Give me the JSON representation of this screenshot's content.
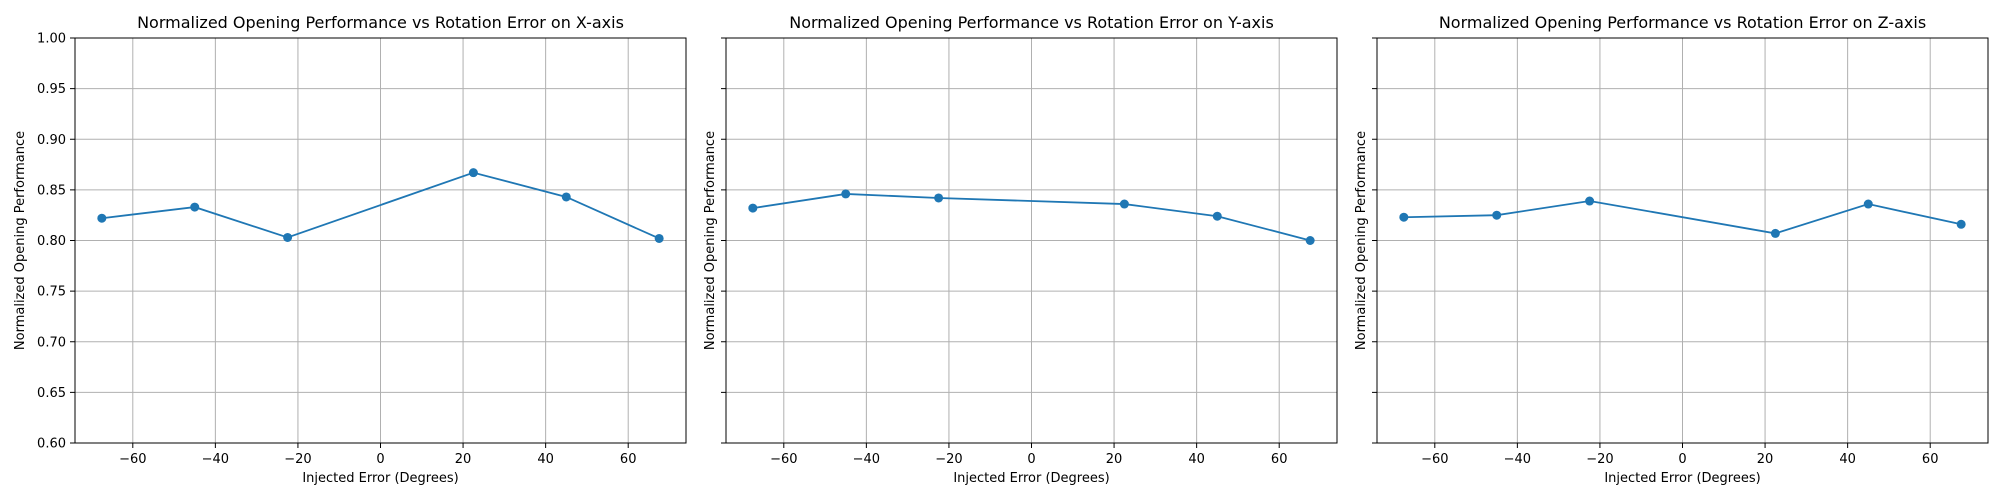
{
  "chart_data": [
    {
      "type": "line",
      "title": "Normalized Opening Performance vs Rotation Error on X-axis",
      "xlabel": "Injected Error (Degrees)",
      "ylabel": "Normalized Opening Performance",
      "xlim": [
        -74,
        74
      ],
      "ylim": [
        0.6,
        1.0
      ],
      "xticks": [
        -60,
        -40,
        -20,
        0,
        20,
        40,
        60
      ],
      "yticks": [
        0.6,
        0.65,
        0.7,
        0.75,
        0.8,
        0.85,
        0.9,
        0.95,
        1.0
      ],
      "show_ytick_labels": true,
      "grid": true,
      "series": [
        {
          "x": [
            -67.5,
            -45,
            -22.5,
            22.5,
            45,
            67.5
          ],
          "y": [
            0.822,
            0.833,
            0.803,
            0.867,
            0.843,
            0.802
          ],
          "color": "#1f77b4",
          "marker": "circle"
        }
      ]
    },
    {
      "type": "line",
      "title": "Normalized Opening Performance vs Rotation Error on Y-axis",
      "xlabel": "Injected Error (Degrees)",
      "ylabel": "Normalized Opening Performance",
      "xlim": [
        -74,
        74
      ],
      "ylim": [
        0.6,
        1.0
      ],
      "xticks": [
        -60,
        -40,
        -20,
        0,
        20,
        40,
        60
      ],
      "yticks": [
        0.6,
        0.65,
        0.7,
        0.75,
        0.8,
        0.85,
        0.9,
        0.95,
        1.0
      ],
      "show_ytick_labels": false,
      "grid": true,
      "series": [
        {
          "x": [
            -67.5,
            -45,
            -22.5,
            22.5,
            45,
            67.5
          ],
          "y": [
            0.832,
            0.846,
            0.842,
            0.836,
            0.824,
            0.8
          ],
          "color": "#1f77b4",
          "marker": "circle"
        }
      ]
    },
    {
      "type": "line",
      "title": "Normalized Opening Performance vs Rotation Error on Z-axis",
      "xlabel": "Injected Error (Degrees)",
      "ylabel": "Normalized Opening Performance",
      "xlim": [
        -74,
        74
      ],
      "ylim": [
        0.6,
        1.0
      ],
      "xticks": [
        -60,
        -40,
        -20,
        0,
        20,
        40,
        60
      ],
      "yticks": [
        0.6,
        0.65,
        0.7,
        0.75,
        0.8,
        0.85,
        0.9,
        0.95,
        1.0
      ],
      "show_ytick_labels": false,
      "grid": true,
      "series": [
        {
          "x": [
            -67.5,
            -45,
            -22.5,
            22.5,
            45,
            67.5
          ],
          "y": [
            0.823,
            0.825,
            0.839,
            0.807,
            0.836,
            0.816
          ],
          "color": "#1f77b4",
          "marker": "circle"
        }
      ]
    }
  ]
}
